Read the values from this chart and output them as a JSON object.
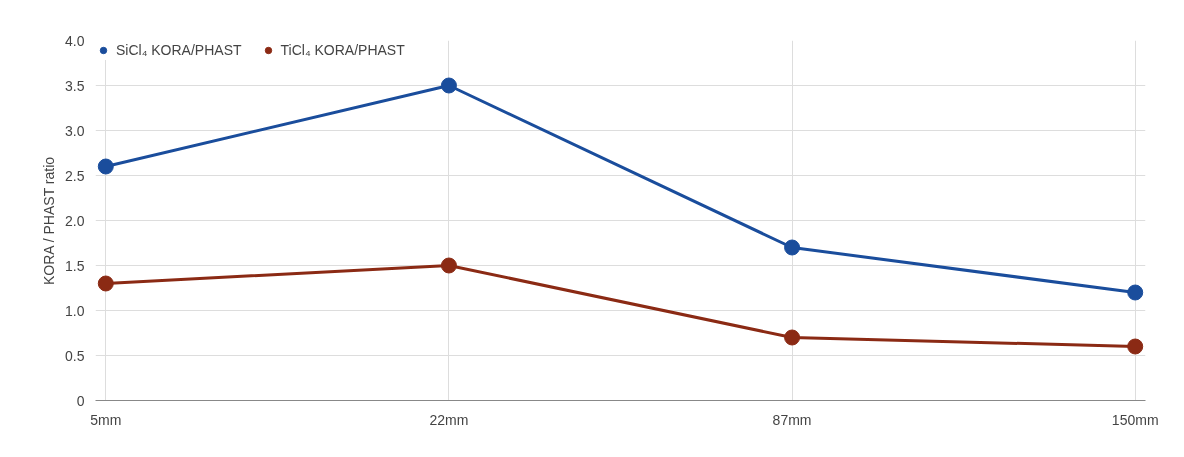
{
  "chart_data": {
    "type": "line",
    "ylabel": "KORA / PHAST ratio",
    "categories": [
      "5mm",
      "22mm",
      "87mm",
      "150mm"
    ],
    "series": [
      {
        "name": "SiCl₄ KORA/PHAST",
        "color": "#1a4d9c",
        "values": [
          2.6,
          3.5,
          1.7,
          1.2
        ]
      },
      {
        "name": "TiCl₄ KORA/PHAST",
        "color": "#8b2a14",
        "values": [
          1.3,
          1.5,
          0.7,
          0.6
        ]
      }
    ],
    "ylim": [
      0,
      4
    ],
    "yticks": [
      0,
      {
        "value": 0.5,
        "label": "0.5"
      },
      {
        "value": 1,
        "label": "1.0"
      },
      {
        "value": 1.5,
        "label": "1.5"
      },
      {
        "value": 2,
        "label": "2.0"
      },
      {
        "value": 2.5,
        "label": "2.5"
      },
      {
        "value": 3,
        "label": "3.0"
      },
      {
        "value": 3.5,
        "label": "3.5"
      },
      {
        "value": 4,
        "label": "4.0"
      }
    ],
    "grid": true,
    "legend": "top left",
    "marker": "circle",
    "line_style": "solid"
  }
}
